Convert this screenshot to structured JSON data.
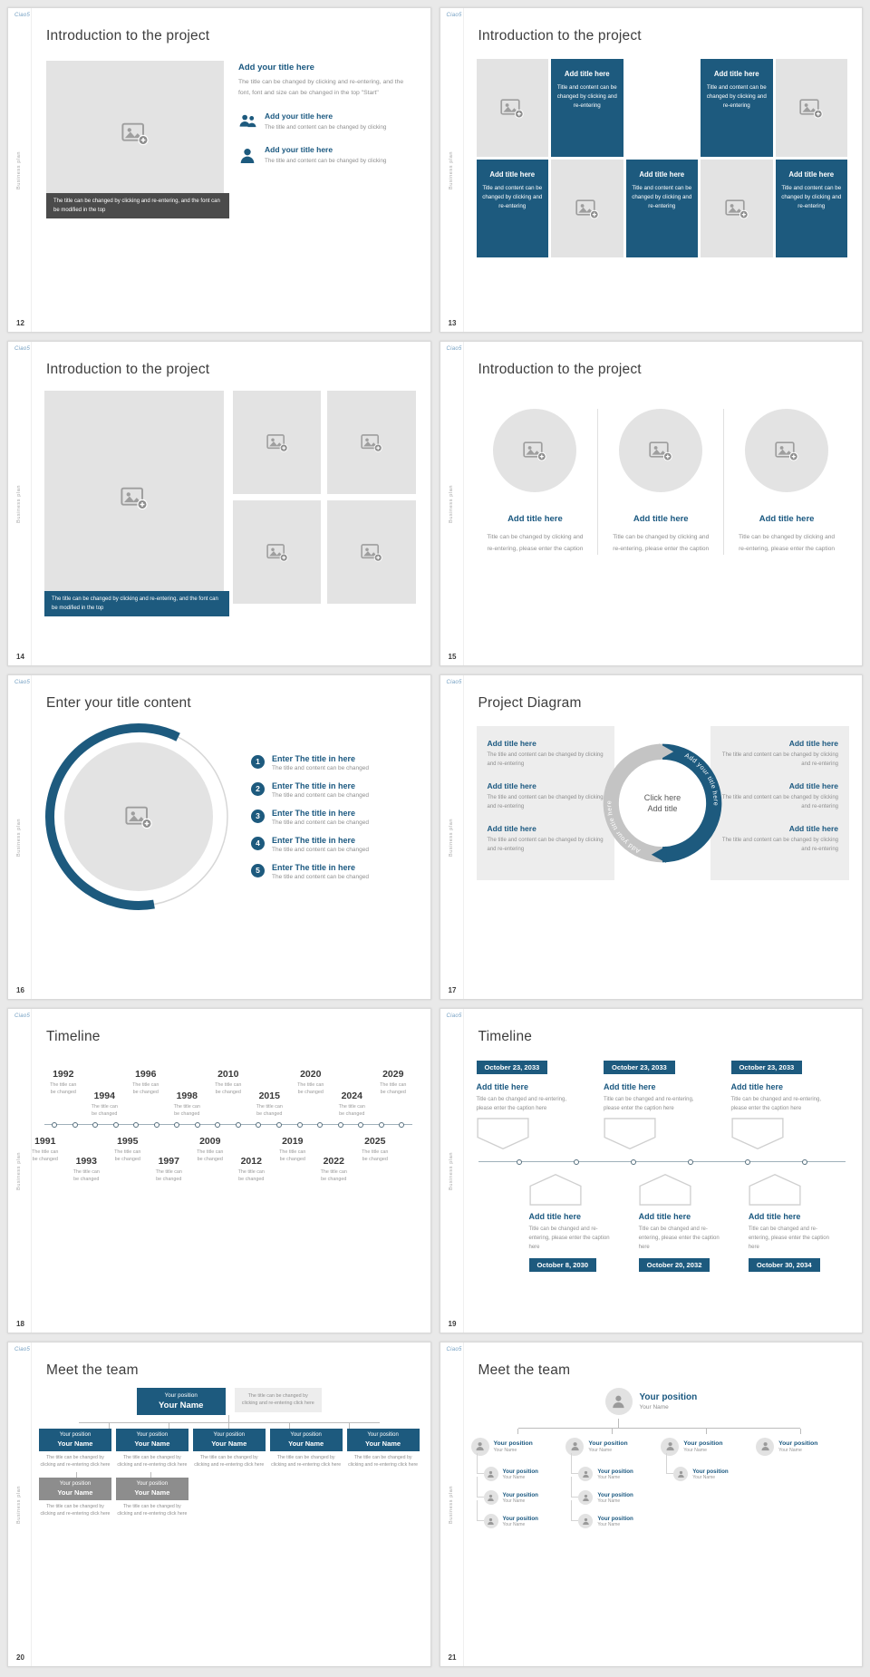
{
  "colors": {
    "accent": "#1d5a7e",
    "heading_blue": "#1a5880",
    "dark_caption_bar": "#4b4b4b",
    "placeholder_gray": "#e3e3e3",
    "body_text_gray": "#8f8f8f"
  },
  "common": {
    "logo": "Ciao5",
    "sidebar_label": "Business plan"
  },
  "slides": {
    "s12": {
      "number": "12",
      "title": "Introduction to the project",
      "image_caption": "The title can be changed by clicking and re-entering, and the font can be modified in the top",
      "intro": {
        "heading": "Add your title here",
        "body": "The title can be changed by clicking and re-entering, and the font, font and size can be changed in the top \"Start\""
      },
      "items": [
        {
          "heading": "Add your title here",
          "body": "The title and content can be changed by clicking"
        },
        {
          "heading": "Add your title here",
          "body": "The title and content can be changed by clicking"
        }
      ]
    },
    "s13": {
      "number": "13",
      "title": "Introduction to the project",
      "tile_heading": "Add title here",
      "tile_body": "Title and content can be changed by clicking and re-entering"
    },
    "s14": {
      "number": "14",
      "title": "Introduction to the project",
      "image_caption": "The title can be changed by clicking and re-entering, and the font can be modified in the top"
    },
    "s15": {
      "number": "15",
      "title": "Introduction to the project",
      "columns": [
        {
          "heading": "Add title here",
          "body": "Title can be changed by clicking and re-entering, please enter the caption"
        },
        {
          "heading": "Add title here",
          "body": "Title can be changed by clicking and re-entering, please enter the caption"
        },
        {
          "heading": "Add title here",
          "body": "Title can be changed by clicking and re-entering, please enter the caption"
        }
      ]
    },
    "s16": {
      "number": "16",
      "title": "Enter your title content",
      "items": [
        {
          "num": "1",
          "heading": "Enter The title in here",
          "body": "The title and content can be changed"
        },
        {
          "num": "2",
          "heading": "Enter The title in here",
          "body": "The title and content can be changed"
        },
        {
          "num": "3",
          "heading": "Enter The title in here",
          "body": "The title and content can be changed"
        },
        {
          "num": "4",
          "heading": "Enter The title in here",
          "body": "The title and content can be changed"
        },
        {
          "num": "5",
          "heading": "Enter The title in here",
          "body": "The title and content can be changed"
        }
      ]
    },
    "s17": {
      "number": "17",
      "title": "Project Diagram",
      "center": {
        "line1": "Click here",
        "line2": "Add title",
        "arc_label": "Add your title here"
      },
      "left_items": [
        {
          "heading": "Add title here",
          "body": "The title and content can be changed by clicking and re-entering"
        },
        {
          "heading": "Add title here",
          "body": "The title and content can be changed by clicking and re-entering"
        },
        {
          "heading": "Add title here",
          "body": "The title and content can be changed by clicking and re-entering"
        }
      ],
      "right_items": [
        {
          "heading": "Add title here",
          "body": "The title and content can be changed by clicking and re-entering"
        },
        {
          "heading": "Add title here",
          "body": "The title and content can be changed by clicking and re-entering"
        },
        {
          "heading": "Add title here",
          "body": "The title and content can be changed by clicking and re-entering"
        }
      ]
    },
    "s18": {
      "number": "18",
      "title": "Timeline",
      "caption": "The title can be changed",
      "top": [
        {
          "year": "1992"
        },
        {
          "year": "1994"
        },
        {
          "year": "1996"
        },
        {
          "year": "1998"
        },
        {
          "year": "2010"
        },
        {
          "year": "2015"
        },
        {
          "year": "2020"
        },
        {
          "year": "2024"
        },
        {
          "year": "2029"
        }
      ],
      "bottom": [
        {
          "year": "1991"
        },
        {
          "year": "1993"
        },
        {
          "year": "1995"
        },
        {
          "year": "1997"
        },
        {
          "year": "2009"
        },
        {
          "year": "2012"
        },
        {
          "year": "2019"
        },
        {
          "year": "2022"
        },
        {
          "year": "2025"
        }
      ]
    },
    "s19": {
      "number": "19",
      "title": "Timeline",
      "heading": "Add title here",
      "body": "Title can be changed and re-entering, please enter the caption here",
      "top_groups": [
        {
          "date": "October 23, 2033"
        },
        {
          "date": "October 23, 2033"
        },
        {
          "date": "October 23, 2033"
        }
      ],
      "bottom_groups": [
        {
          "date": "October 8, 2030"
        },
        {
          "date": "October 20, 2032"
        },
        {
          "date": "October 30, 2034"
        }
      ]
    },
    "s20": {
      "number": "20",
      "title": "Meet the team",
      "caption": "The title can be changed by clicking and re-entering click here",
      "note": "The title can be changed by clicking and re-entering click here",
      "top": {
        "position": "Your position",
        "name": "Your Name"
      },
      "members": [
        {
          "position": "Your position",
          "name": "Your Name"
        },
        {
          "position": "Your position",
          "name": "Your Name"
        },
        {
          "position": "Your position",
          "name": "Your Name"
        },
        {
          "position": "Your position",
          "name": "Your Name"
        },
        {
          "position": "Your position",
          "name": "Your Name"
        }
      ],
      "extra": [
        {
          "position": "Your position",
          "name": "Your Name"
        },
        {
          "position": "Your position",
          "name": "Your Name"
        }
      ]
    },
    "s21": {
      "number": "21",
      "title": "Meet the team",
      "root": {
        "position": "Your position",
        "name": "Your Name"
      },
      "children": [
        {
          "position": "Your position",
          "name": "Your Name"
        },
        {
          "position": "Your position",
          "name": "Your Name"
        },
        {
          "position": "Your position",
          "name": "Your Name"
        },
        {
          "position": "Your position",
          "name": "Your Name"
        }
      ],
      "subs": {
        "c1": [
          {
            "position": "Your position",
            "name": "Your Name"
          },
          {
            "position": "Your position",
            "name": "Your Name"
          },
          {
            "position": "Your position",
            "name": "Your Name"
          }
        ],
        "c2": [
          {
            "position": "Your position",
            "name": "Your Name"
          },
          {
            "position": "Your position",
            "name": "Your Name"
          },
          {
            "position": "Your position",
            "name": "Your Name"
          }
        ],
        "c3": [
          {
            "position": "Your position",
            "name": "Your Name"
          }
        ],
        "c4": []
      }
    }
  }
}
